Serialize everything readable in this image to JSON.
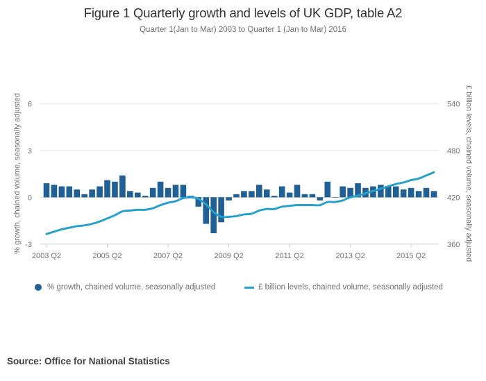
{
  "header": {
    "title": "Figure 1 Quarterly growth and levels of UK GDP, table A2",
    "subtitle": "Quarter 1(Jan to Mar) 2003 to Quarter 1 (Jan to Mar) 2016"
  },
  "colors": {
    "bars": "#206095",
    "line": "#27a0cc",
    "grid": "#e4e4e4",
    "zero_line": "#c8c8c8",
    "axis": "#c6cfdc"
  },
  "legend": {
    "items": [
      {
        "label": "% growth, chained volume, seasonally adjusted",
        "type": "bar"
      },
      {
        "label": "£ billion levels, chained volume, seasonally adjusted",
        "type": "line"
      }
    ]
  },
  "source": "Source: Office for National Statistics",
  "chart_data": {
    "type": "bar",
    "title": "Figure 1 Quarterly growth and levels of UK GDP, table A2",
    "subtitle": "Quarter 1(Jan to Mar) 2003 to Quarter 1 (Jan to Mar) 2016",
    "xlabel": "",
    "ylabel": "% growth, chained volume, seasonally adjusted",
    "y2label": "£ billion levels, chained volume, seasonally adjusted",
    "ylim": [
      -3,
      7.5
    ],
    "y2lim": [
      360,
      570
    ],
    "yticks": [
      -3,
      0,
      3,
      6
    ],
    "y2ticks": [
      360,
      420,
      480,
      540
    ],
    "xtick_labels": [
      "2003 Q2",
      "2005 Q2",
      "2007 Q2",
      "2009 Q2",
      "2011 Q2",
      "2013 Q2",
      "2015 Q2"
    ],
    "grid": true,
    "legend_position": "bottom",
    "categories": [
      "2003 Q2",
      "2003 Q3",
      "2003 Q4",
      "2004 Q1",
      "2004 Q2",
      "2004 Q3",
      "2004 Q4",
      "2005 Q1",
      "2005 Q2",
      "2005 Q3",
      "2005 Q4",
      "2006 Q1",
      "2006 Q2",
      "2006 Q3",
      "2006 Q4",
      "2007 Q1",
      "2007 Q2",
      "2007 Q3",
      "2007 Q4",
      "2008 Q1",
      "2008 Q2",
      "2008 Q3",
      "2008 Q4",
      "2009 Q1",
      "2009 Q2",
      "2009 Q3",
      "2009 Q4",
      "2010 Q1",
      "2010 Q2",
      "2010 Q3",
      "2010 Q4",
      "2011 Q1",
      "2011 Q2",
      "2011 Q3",
      "2011 Q4",
      "2012 Q1",
      "2012 Q2",
      "2012 Q3",
      "2012 Q4",
      "2013 Q1",
      "2013 Q2",
      "2013 Q3",
      "2013 Q4",
      "2014 Q1",
      "2014 Q2",
      "2014 Q3",
      "2014 Q4",
      "2015 Q1",
      "2015 Q2",
      "2015 Q3",
      "2015 Q4",
      "2016 Q1"
    ],
    "series": [
      {
        "name": "% growth, chained volume, seasonally adjusted",
        "type": "bar",
        "axis": "left",
        "values": [
          0.9,
          0.8,
          0.7,
          0.7,
          0.5,
          0.2,
          0.5,
          0.7,
          1.1,
          1.0,
          1.4,
          0.4,
          0.3,
          0.1,
          0.6,
          1.0,
          0.6,
          0.8,
          0.8,
          0.1,
          -0.6,
          -1.7,
          -2.3,
          -1.6,
          -0.2,
          0.2,
          0.4,
          0.4,
          0.8,
          0.5,
          0.1,
          0.7,
          0.3,
          0.8,
          0.2,
          0.2,
          -0.2,
          1.0,
          0.0,
          0.7,
          0.6,
          0.9,
          0.6,
          0.7,
          0.8,
          0.7,
          0.7,
          0.5,
          0.6,
          0.4,
          0.6,
          0.4
        ]
      },
      {
        "name": "£ billion levels, chained volume, seasonally adjusted",
        "type": "line",
        "axis": "right",
        "values": [
          373,
          376,
          379,
          381,
          383,
          384,
          386,
          389,
          393,
          397,
          402,
          403,
          404,
          404,
          406,
          410,
          413,
          415,
          419,
          420,
          418,
          411,
          401,
          395,
          395,
          396,
          398,
          399,
          403,
          405,
          405,
          408,
          409,
          410,
          410,
          410,
          410,
          414,
          414,
          416,
          420,
          422,
          425,
          428,
          431,
          434,
          437,
          439,
          442,
          444,
          448,
          452
        ]
      }
    ]
  }
}
